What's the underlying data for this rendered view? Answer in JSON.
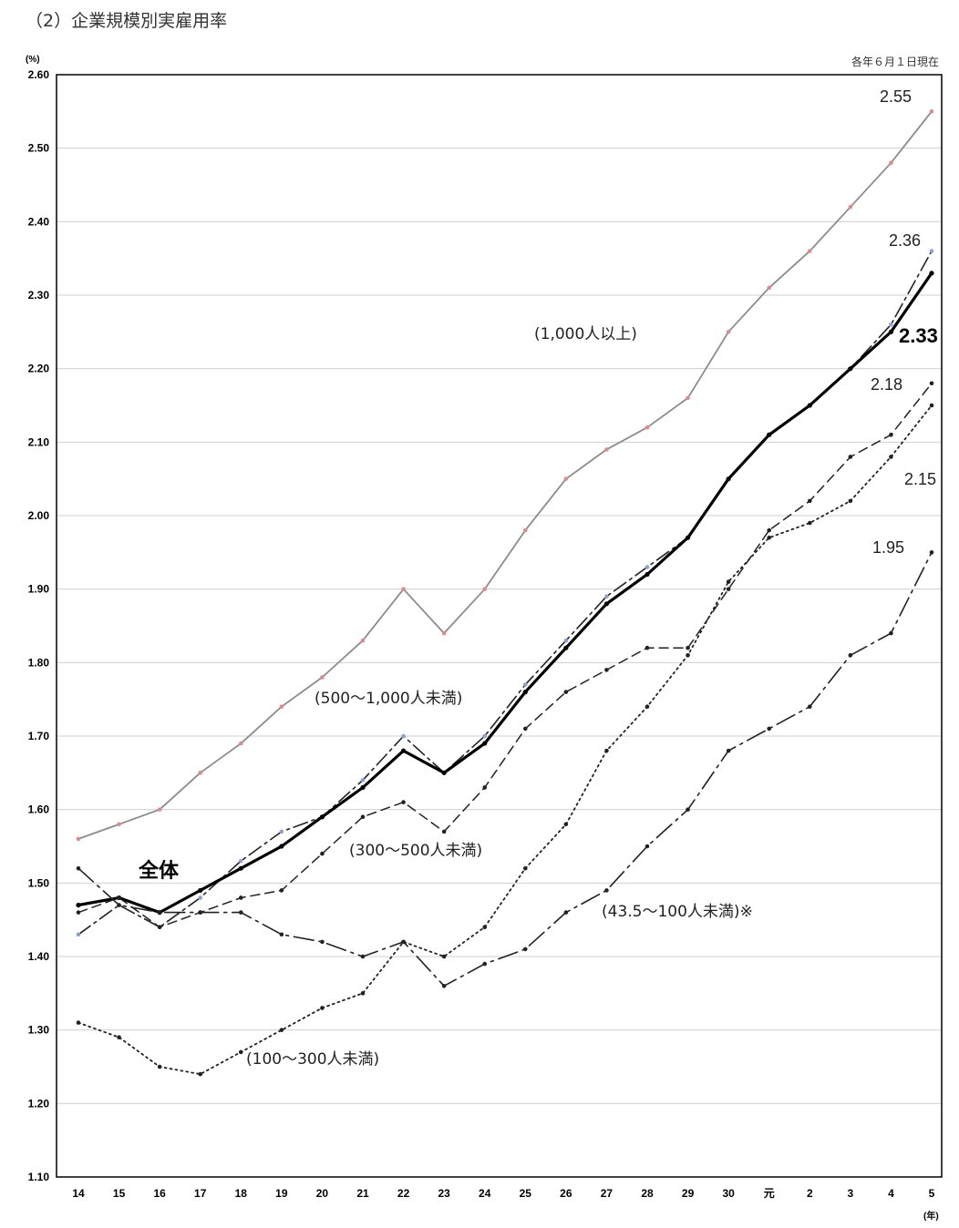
{
  "header": {
    "title": "（2）企業規模別実雇用率",
    "note": "各年６月１日現在"
  },
  "chart_data": {
    "type": "line",
    "ylabel": "(%)",
    "xlabel": "(年)",
    "ylim": [
      1.1,
      2.6
    ],
    "yticks": [
      "1.10",
      "1.20",
      "1.30",
      "1.40",
      "1.50",
      "1.60",
      "1.70",
      "1.80",
      "1.90",
      "2.00",
      "2.10",
      "2.20",
      "2.30",
      "2.40",
      "2.50",
      "2.60"
    ],
    "categories": [
      "14",
      "15",
      "16",
      "17",
      "18",
      "19",
      "20",
      "21",
      "22",
      "23",
      "24",
      "25",
      "26",
      "27",
      "28",
      "29",
      "30",
      "元",
      "2",
      "3",
      "4",
      "5"
    ],
    "grid": true,
    "series": [
      {
        "name": "(1,000人以上)",
        "color": "#8c8c8c",
        "marker_color": "#e08a8a",
        "dash": "",
        "width": 1.8,
        "values": [
          1.56,
          1.58,
          1.6,
          1.65,
          1.69,
          1.74,
          1.78,
          1.83,
          1.9,
          1.84,
          1.9,
          1.98,
          2.05,
          2.09,
          2.12,
          2.16,
          2.25,
          2.31,
          2.36,
          2.42,
          2.48,
          2.55
        ],
        "end_label": "2.55"
      },
      {
        "name": "(500～1,000人未満)",
        "color": "#222222",
        "marker_color": "#8aa0d8",
        "dash": "16 5 3 5",
        "width": 1.6,
        "values": [
          1.43,
          1.47,
          1.44,
          1.48,
          1.53,
          1.57,
          1.59,
          1.64,
          1.7,
          1.65,
          1.7,
          1.77,
          1.83,
          1.89,
          1.93,
          1.97,
          2.05,
          2.11,
          2.15,
          2.2,
          2.26,
          2.36
        ],
        "end_label": "2.36"
      },
      {
        "name": "全体",
        "color": "#000000",
        "marker_color": "#000000",
        "dash": "",
        "width": 3.2,
        "values": [
          1.47,
          1.48,
          1.46,
          1.49,
          1.52,
          1.55,
          1.59,
          1.63,
          1.68,
          1.65,
          1.69,
          1.76,
          1.82,
          1.88,
          1.92,
          1.97,
          2.05,
          2.11,
          2.15,
          2.2,
          2.25,
          2.33
        ],
        "end_label": "2.33"
      },
      {
        "name": "(300～500人未満)",
        "color": "#222222",
        "marker_color": "#222222",
        "dash": "10 6",
        "width": 1.5,
        "values": [
          1.46,
          1.48,
          1.44,
          1.46,
          1.48,
          1.49,
          1.54,
          1.59,
          1.61,
          1.57,
          1.63,
          1.71,
          1.76,
          1.79,
          1.82,
          1.82,
          1.9,
          1.98,
          2.02,
          2.08,
          2.11,
          2.18
        ],
        "end_label": "2.18"
      },
      {
        "name": "(100～300人未満)",
        "color": "#222222",
        "marker_color": "#222222",
        "dash": "2 4",
        "width": 1.8,
        "values": [
          1.31,
          1.29,
          1.25,
          1.24,
          1.27,
          1.3,
          1.33,
          1.35,
          1.42,
          1.4,
          1.44,
          1.52,
          1.58,
          1.68,
          1.74,
          1.81,
          1.91,
          1.97,
          1.99,
          2.02,
          2.08,
          2.15
        ],
        "end_label": "2.15"
      },
      {
        "name": "(43.5～100人未満)※",
        "color": "#222222",
        "marker_color": "#222222",
        "dash": "22 6 3 6",
        "width": 1.6,
        "values": [
          1.52,
          1.47,
          1.46,
          1.46,
          1.46,
          1.43,
          1.42,
          1.4,
          1.42,
          1.36,
          1.39,
          1.41,
          1.46,
          1.49,
          1.55,
          1.6,
          1.68,
          1.71,
          1.74,
          1.81,
          1.84,
          1.95
        ],
        "end_label": "1.95"
      }
    ]
  }
}
